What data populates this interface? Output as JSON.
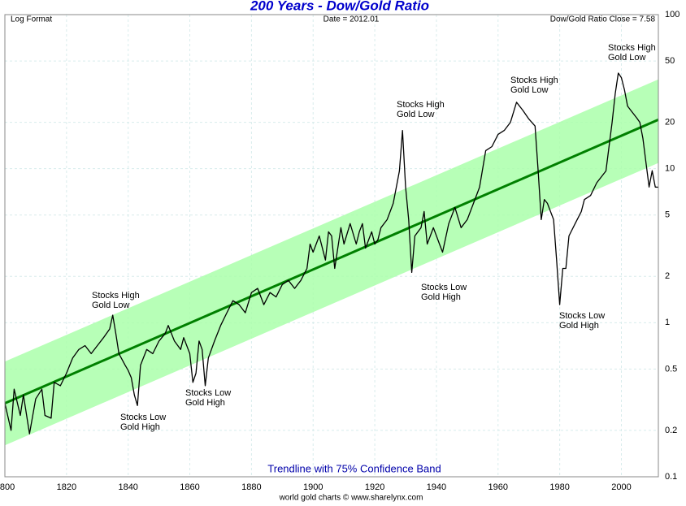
{
  "chart_data": {
    "type": "line",
    "title": "200 Years - Dow/Gold Ratio",
    "notes": {
      "left": "Log Format",
      "center": "Date = 2012.01",
      "right": "Dow/Gold Ratio Close = 7.58"
    },
    "band_label": "Trendline with 75% Confidence Band",
    "credit": "world gold charts © www.sharelynx.com",
    "log_scale": true,
    "grid": true,
    "color": "#000000",
    "x": [
      1800,
      1802,
      1803,
      1805,
      1806,
      1808,
      1810,
      1812,
      1813,
      1815,
      1816,
      1818,
      1820,
      1822,
      1824,
      1826,
      1828,
      1830,
      1832,
      1834,
      1835,
      1836,
      1837,
      1839,
      1840,
      1841,
      1842,
      1843,
      1844,
      1846,
      1848,
      1850,
      1852,
      1853,
      1855,
      1857,
      1858,
      1860,
      1861,
      1862,
      1863,
      1864,
      1865,
      1866,
      1868,
      1870,
      1872,
      1874,
      1876,
      1878,
      1880,
      1882,
      1884,
      1886,
      1888,
      1890,
      1892,
      1894,
      1896,
      1898,
      1899,
      1900,
      1902,
      1904,
      1905,
      1906,
      1907,
      1909,
      1910,
      1912,
      1914,
      1915,
      1916,
      1917,
      1919,
      1920,
      1921,
      1922,
      1924,
      1926,
      1927,
      1928,
      1929,
      1930,
      1931,
      1932,
      1933,
      1935,
      1936,
      1937,
      1938,
      1939,
      1941,
      1942,
      1944,
      1946,
      1948,
      1950,
      1952,
      1954,
      1956,
      1958,
      1960,
      1962,
      1964,
      1966,
      1968,
      1970,
      1972,
      1973,
      1974,
      1975,
      1976,
      1978,
      1979,
      1980,
      1981,
      1982,
      1983,
      1985,
      1987,
      1988,
      1990,
      1992,
      1994,
      1995,
      1996,
      1997,
      1998,
      1999,
      2000,
      2001,
      2002,
      2003,
      2004,
      2005,
      2006,
      2007,
      2008,
      2009,
      2010,
      2011,
      2012
    ],
    "values": [
      0.3,
      0.2,
      0.37,
      0.25,
      0.34,
      0.19,
      0.32,
      0.37,
      0.25,
      0.24,
      0.41,
      0.39,
      0.47,
      0.59,
      0.67,
      0.71,
      0.63,
      0.71,
      0.8,
      0.91,
      1.12,
      0.85,
      0.63,
      0.53,
      0.49,
      0.44,
      0.34,
      0.29,
      0.53,
      0.67,
      0.63,
      0.76,
      0.85,
      0.96,
      0.76,
      0.67,
      0.8,
      0.63,
      0.41,
      0.47,
      0.76,
      0.67,
      0.39,
      0.59,
      0.76,
      0.96,
      1.16,
      1.39,
      1.31,
      1.16,
      1.57,
      1.67,
      1.31,
      1.57,
      1.47,
      1.77,
      1.88,
      1.67,
      1.88,
      2.25,
      3.24,
      2.87,
      3.66,
      2.55,
      3.89,
      3.66,
      2.25,
      4.14,
      3.24,
      4.4,
      3.24,
      3.89,
      4.4,
      3.05,
      3.89,
      3.24,
      3.45,
      4.14,
      4.67,
      5.95,
      7.58,
      9.66,
      17.7,
      7.6,
      4.67,
      2.12,
      3.66,
      4.14,
      5.27,
      3.24,
      3.66,
      4.14,
      3.24,
      2.87,
      4.4,
      5.6,
      4.14,
      4.67,
      5.95,
      7.58,
      13.1,
      13.9,
      16.7,
      17.7,
      20,
      27,
      24,
      21,
      18.9,
      9.66,
      4.67,
      6.3,
      5.95,
      4.67,
      2.55,
      1.31,
      2.25,
      2.25,
      3.66,
      4.4,
      5.27,
      6.3,
      6.7,
      8.1,
      9.1,
      9.66,
      13.9,
      20,
      30.6,
      41.7,
      39,
      32.5,
      25.5,
      24,
      22.6,
      21.3,
      20,
      15.7,
      10.9,
      7.6,
      9.7,
      7.6,
      7.58
    ],
    "trend": {
      "color": "#008000",
      "x": [
        1800,
        2012
      ],
      "values": [
        0.3,
        20.8
      ]
    },
    "band": {
      "color": "#aaffaa",
      "upper": [
        0.56,
        38
      ],
      "lower": [
        0.16,
        10.9
      ]
    },
    "annotations": [
      [
        "Stocks High",
        "Gold Low"
      ],
      [
        "Stocks Low",
        "Gold High"
      ],
      [
        "Stocks Low",
        "Gold High"
      ],
      [
        "Stocks High",
        "Gold Low"
      ],
      [
        "Stocks Low",
        "Gold High"
      ],
      [
        "Stocks High",
        "Gold Low"
      ],
      [
        "Stocks Low",
        "Gold High"
      ],
      [
        "Stocks High",
        "Gold Low"
      ]
    ],
    "xlim": [
      1800,
      2012
    ],
    "xticks": [
      1800,
      1820,
      1840,
      1860,
      1880,
      1900,
      1920,
      1940,
      1960,
      1980,
      2000
    ],
    "ylim": [
      0.1,
      100
    ],
    "yticks": [
      100,
      50,
      20,
      10,
      5,
      2,
      1,
      0.5,
      0.2,
      0.1
    ]
  }
}
